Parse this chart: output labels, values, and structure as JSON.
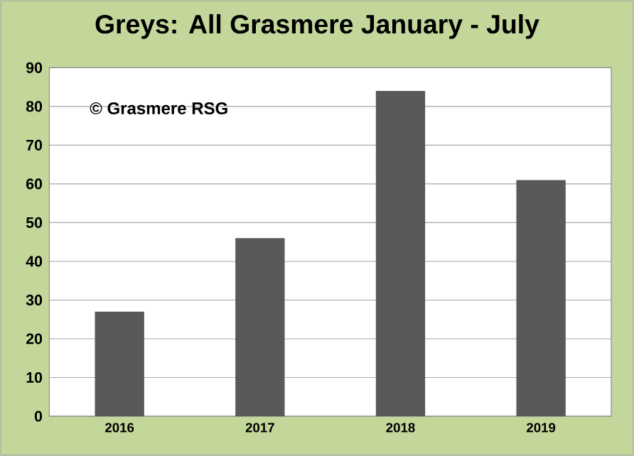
{
  "chart_data": {
    "type": "bar",
    "title": "Greys: All Grasmere January - July",
    "categories": [
      "2016",
      "2017",
      "2018",
      "2019"
    ],
    "values": [
      27,
      46,
      84,
      61
    ],
    "color": "#595959",
    "ylim": [
      0,
      90
    ],
    "yticks": [
      0,
      10,
      20,
      30,
      40,
      50,
      60,
      70,
      80,
      90
    ],
    "grid": "y",
    "annotations": [
      "© Grasmere RSG"
    ]
  }
}
